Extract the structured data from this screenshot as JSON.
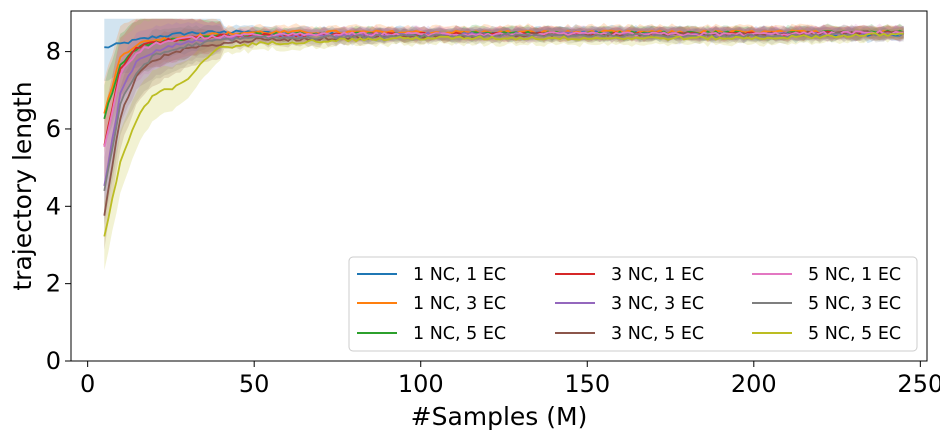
{
  "chart_data": {
    "type": "line",
    "title": "",
    "xlabel": "#Samples (M)",
    "ylabel": "trajectory length",
    "xlim": [
      -5,
      252
    ],
    "ylim": [
      0,
      9.05
    ],
    "xticks": [
      0,
      50,
      100,
      150,
      200,
      250
    ],
    "yticks": [
      0,
      2,
      4,
      6,
      8
    ],
    "grid": false,
    "legend": {
      "location": "lower-right",
      "columns": 3
    },
    "x_range": [
      5,
      245
    ],
    "series": [
      {
        "name": "1 NC, 1 EC",
        "color": "#1f77b4",
        "x": [
          5,
          10,
          15,
          20,
          30,
          40,
          50,
          75,
          100,
          150,
          200,
          245
        ],
        "y": [
          8.1,
          8.2,
          8.3,
          8.38,
          8.48,
          8.5,
          8.5,
          8.45,
          8.45,
          8.48,
          8.45,
          8.45
        ]
      },
      {
        "name": "1 NC, 3 EC",
        "color": "#ff7f0e",
        "x": [
          5,
          10,
          15,
          20,
          30,
          40,
          50,
          75,
          100,
          150,
          200,
          245
        ],
        "y": [
          6.4,
          7.9,
          8.2,
          8.3,
          8.4,
          8.45,
          8.5,
          8.5,
          8.5,
          8.5,
          8.5,
          8.5
        ]
      },
      {
        "name": "1 NC, 5 EC",
        "color": "#2ca02c",
        "x": [
          5,
          10,
          15,
          20,
          30,
          40,
          50,
          75,
          100,
          150,
          200,
          245
        ],
        "y": [
          6.3,
          7.7,
          8.1,
          8.25,
          8.35,
          8.4,
          8.45,
          8.45,
          8.45,
          8.48,
          8.48,
          8.5
        ]
      },
      {
        "name": "3 NC, 1 EC",
        "color": "#d62728",
        "x": [
          5,
          10,
          15,
          20,
          30,
          40,
          50,
          75,
          100,
          150,
          200,
          245
        ],
        "y": [
          5.6,
          7.6,
          8.1,
          8.25,
          8.35,
          8.4,
          8.42,
          8.43,
          8.45,
          8.45,
          8.45,
          8.5
        ]
      },
      {
        "name": "3 NC, 3 EC",
        "color": "#9467bd",
        "x": [
          5,
          10,
          15,
          20,
          30,
          40,
          50,
          75,
          100,
          150,
          200,
          245
        ],
        "y": [
          4.5,
          7.0,
          7.8,
          8.0,
          8.25,
          8.35,
          8.4,
          8.42,
          8.45,
          8.45,
          8.45,
          8.45
        ]
      },
      {
        "name": "3 NC, 5 EC",
        "color": "#8c564b",
        "x": [
          5,
          10,
          15,
          20,
          30,
          40,
          50,
          75,
          100,
          150,
          200,
          245
        ],
        "y": [
          3.8,
          6.4,
          7.4,
          7.8,
          8.1,
          8.2,
          8.3,
          8.35,
          8.4,
          8.45,
          8.45,
          8.5
        ]
      },
      {
        "name": "5 NC, 1 EC",
        "color": "#e377c2",
        "x": [
          5,
          10,
          15,
          20,
          30,
          40,
          50,
          75,
          100,
          150,
          200,
          245
        ],
        "y": [
          5.5,
          7.5,
          8.0,
          8.2,
          8.35,
          8.4,
          8.42,
          8.45,
          8.45,
          8.45,
          8.45,
          8.5
        ]
      },
      {
        "name": "5 NC, 3 EC",
        "color": "#7f7f7f",
        "x": [
          5,
          10,
          15,
          20,
          30,
          40,
          50,
          75,
          100,
          150,
          200,
          245
        ],
        "y": [
          4.4,
          6.7,
          7.5,
          7.9,
          8.15,
          8.3,
          8.35,
          8.38,
          8.4,
          8.42,
          8.4,
          8.45
        ]
      },
      {
        "name": "5 NC, 5 EC",
        "color": "#bcbd22",
        "x": [
          5,
          10,
          15,
          20,
          25,
          30,
          35,
          40,
          50,
          75,
          100,
          150,
          200,
          245
        ],
        "y": [
          3.2,
          5.2,
          6.3,
          6.9,
          7.05,
          7.3,
          7.8,
          8.1,
          8.2,
          8.3,
          8.35,
          8.35,
          8.35,
          8.45
        ]
      }
    ]
  }
}
